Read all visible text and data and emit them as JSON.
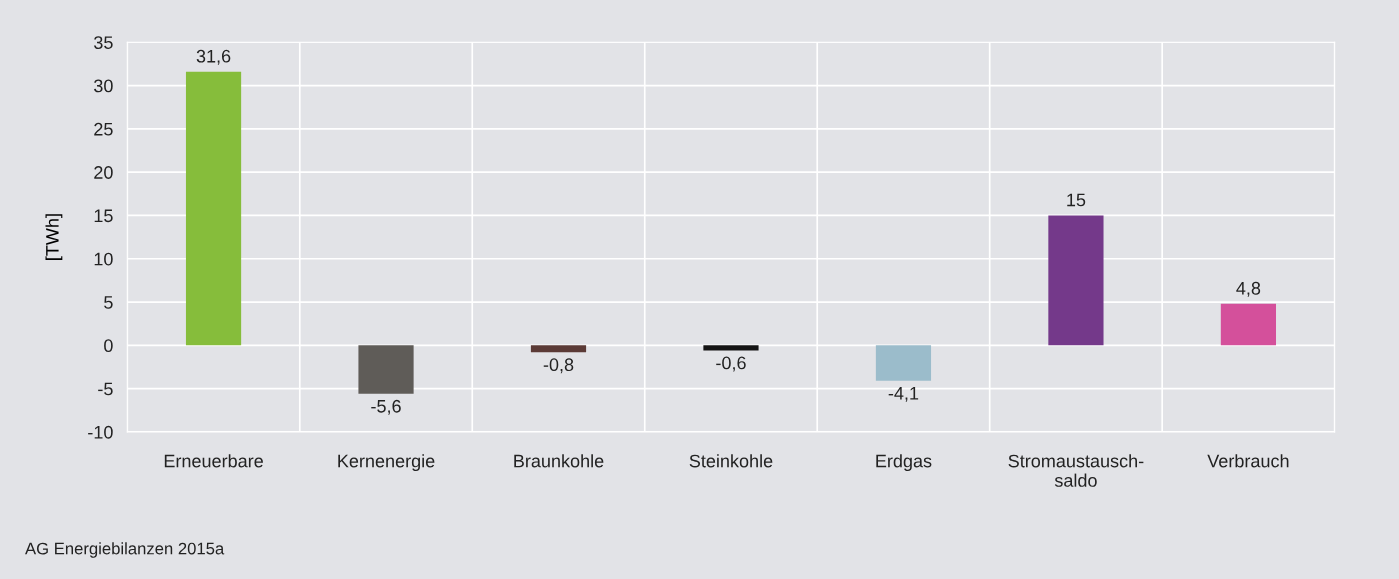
{
  "chart_data": {
    "type": "bar",
    "ylabel": "[TWh]",
    "categories": [
      "Erneuerbare",
      "Kernenergie",
      "Braunkohle",
      "Steinkohle",
      "Erdgas",
      "Stromaustausch-\nsaldo",
      "Verbrauch"
    ],
    "values": [
      31.6,
      -5.6,
      -0.8,
      -0.6,
      -4.1,
      15,
      4.8
    ],
    "colors": [
      "#86bd3b",
      "#5f5c58",
      "#5b3a36",
      "#141414",
      "#9bbccb",
      "#74398a",
      "#d4509b"
    ],
    "value_labels": [
      "31,6",
      "-5,6",
      "-0,8",
      "-0,6",
      "-4,1",
      "15",
      "4,8"
    ],
    "ylim": [
      -10,
      35
    ],
    "yticks": [
      -10,
      -5,
      0,
      5,
      10,
      15,
      20,
      25,
      30,
      35
    ],
    "grid": true,
    "annotations": [
      "AG Energiebilanzen 2015a"
    ]
  }
}
